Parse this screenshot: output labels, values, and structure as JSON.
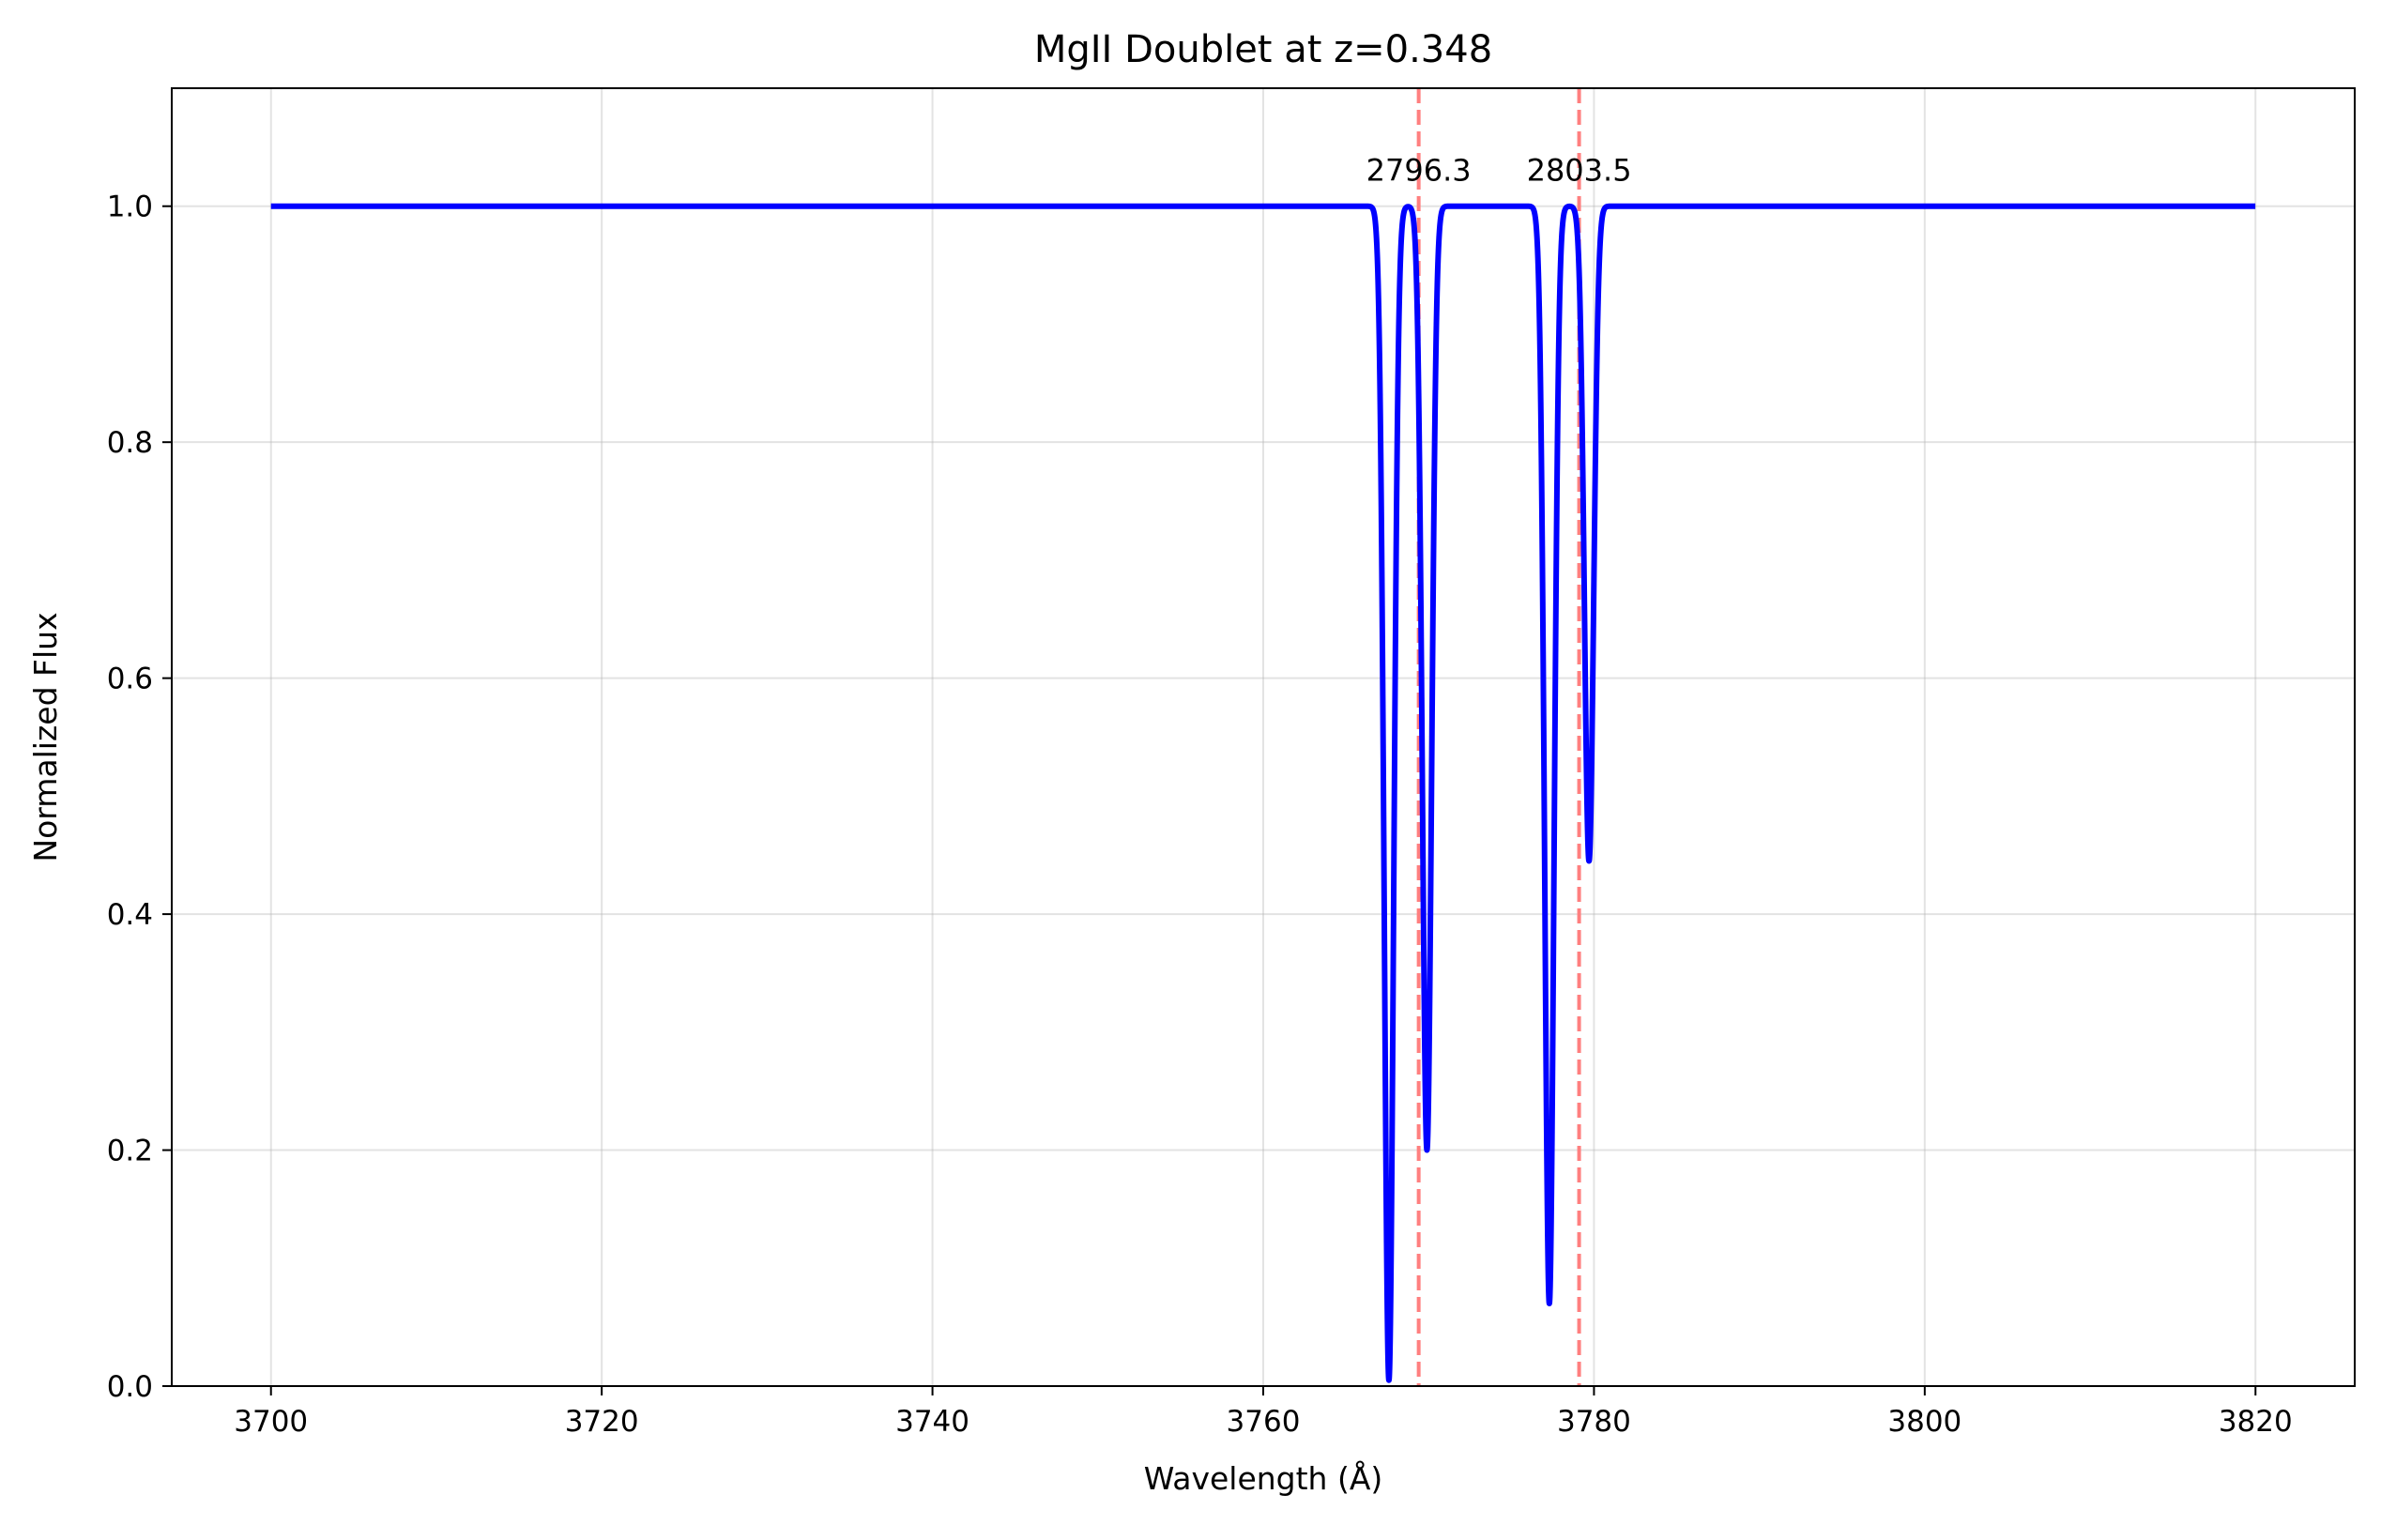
{
  "chart_data": {
    "type": "line",
    "title": "MgII Doublet at z=0.348",
    "xlabel": "Wavelength (Å)",
    "ylabel": "Normalized Flux",
    "xlim": [
      3694,
      3826
    ],
    "ylim": [
      0.0,
      1.1
    ],
    "grid": true,
    "x_ticks": [
      3700,
      3720,
      3740,
      3760,
      3780,
      3800,
      3820
    ],
    "x_tick_labels": [
      "3700",
      "3720",
      "3740",
      "3760",
      "3780",
      "3800",
      "3820"
    ],
    "y_ticks": [
      0.0,
      0.2,
      0.4,
      0.6,
      0.8,
      1.0
    ],
    "y_tick_labels": [
      "0.0",
      "0.2",
      "0.4",
      "0.6",
      "0.8",
      "1.0"
    ],
    "continuum": 1.0,
    "x_range": [
      3700,
      3820
    ],
    "absorption_components": [
      {
        "center": 3767.6,
        "min_flux": 0.005
      },
      {
        "center": 3769.9,
        "min_flux": 0.2
      },
      {
        "center": 3777.3,
        "min_flux": 0.07
      },
      {
        "center": 3779.7,
        "min_flux": 0.445
      }
    ],
    "series": [
      {
        "color": "#0000ff",
        "style": "solid"
      }
    ],
    "reference_lines": [
      {
        "x": 3769.4,
        "label": "2796.3",
        "color": "#ff7f7f",
        "style": "dashed"
      },
      {
        "x": 3779.1,
        "label": "2803.5",
        "color": "#ff7f7f",
        "style": "dashed"
      }
    ]
  }
}
